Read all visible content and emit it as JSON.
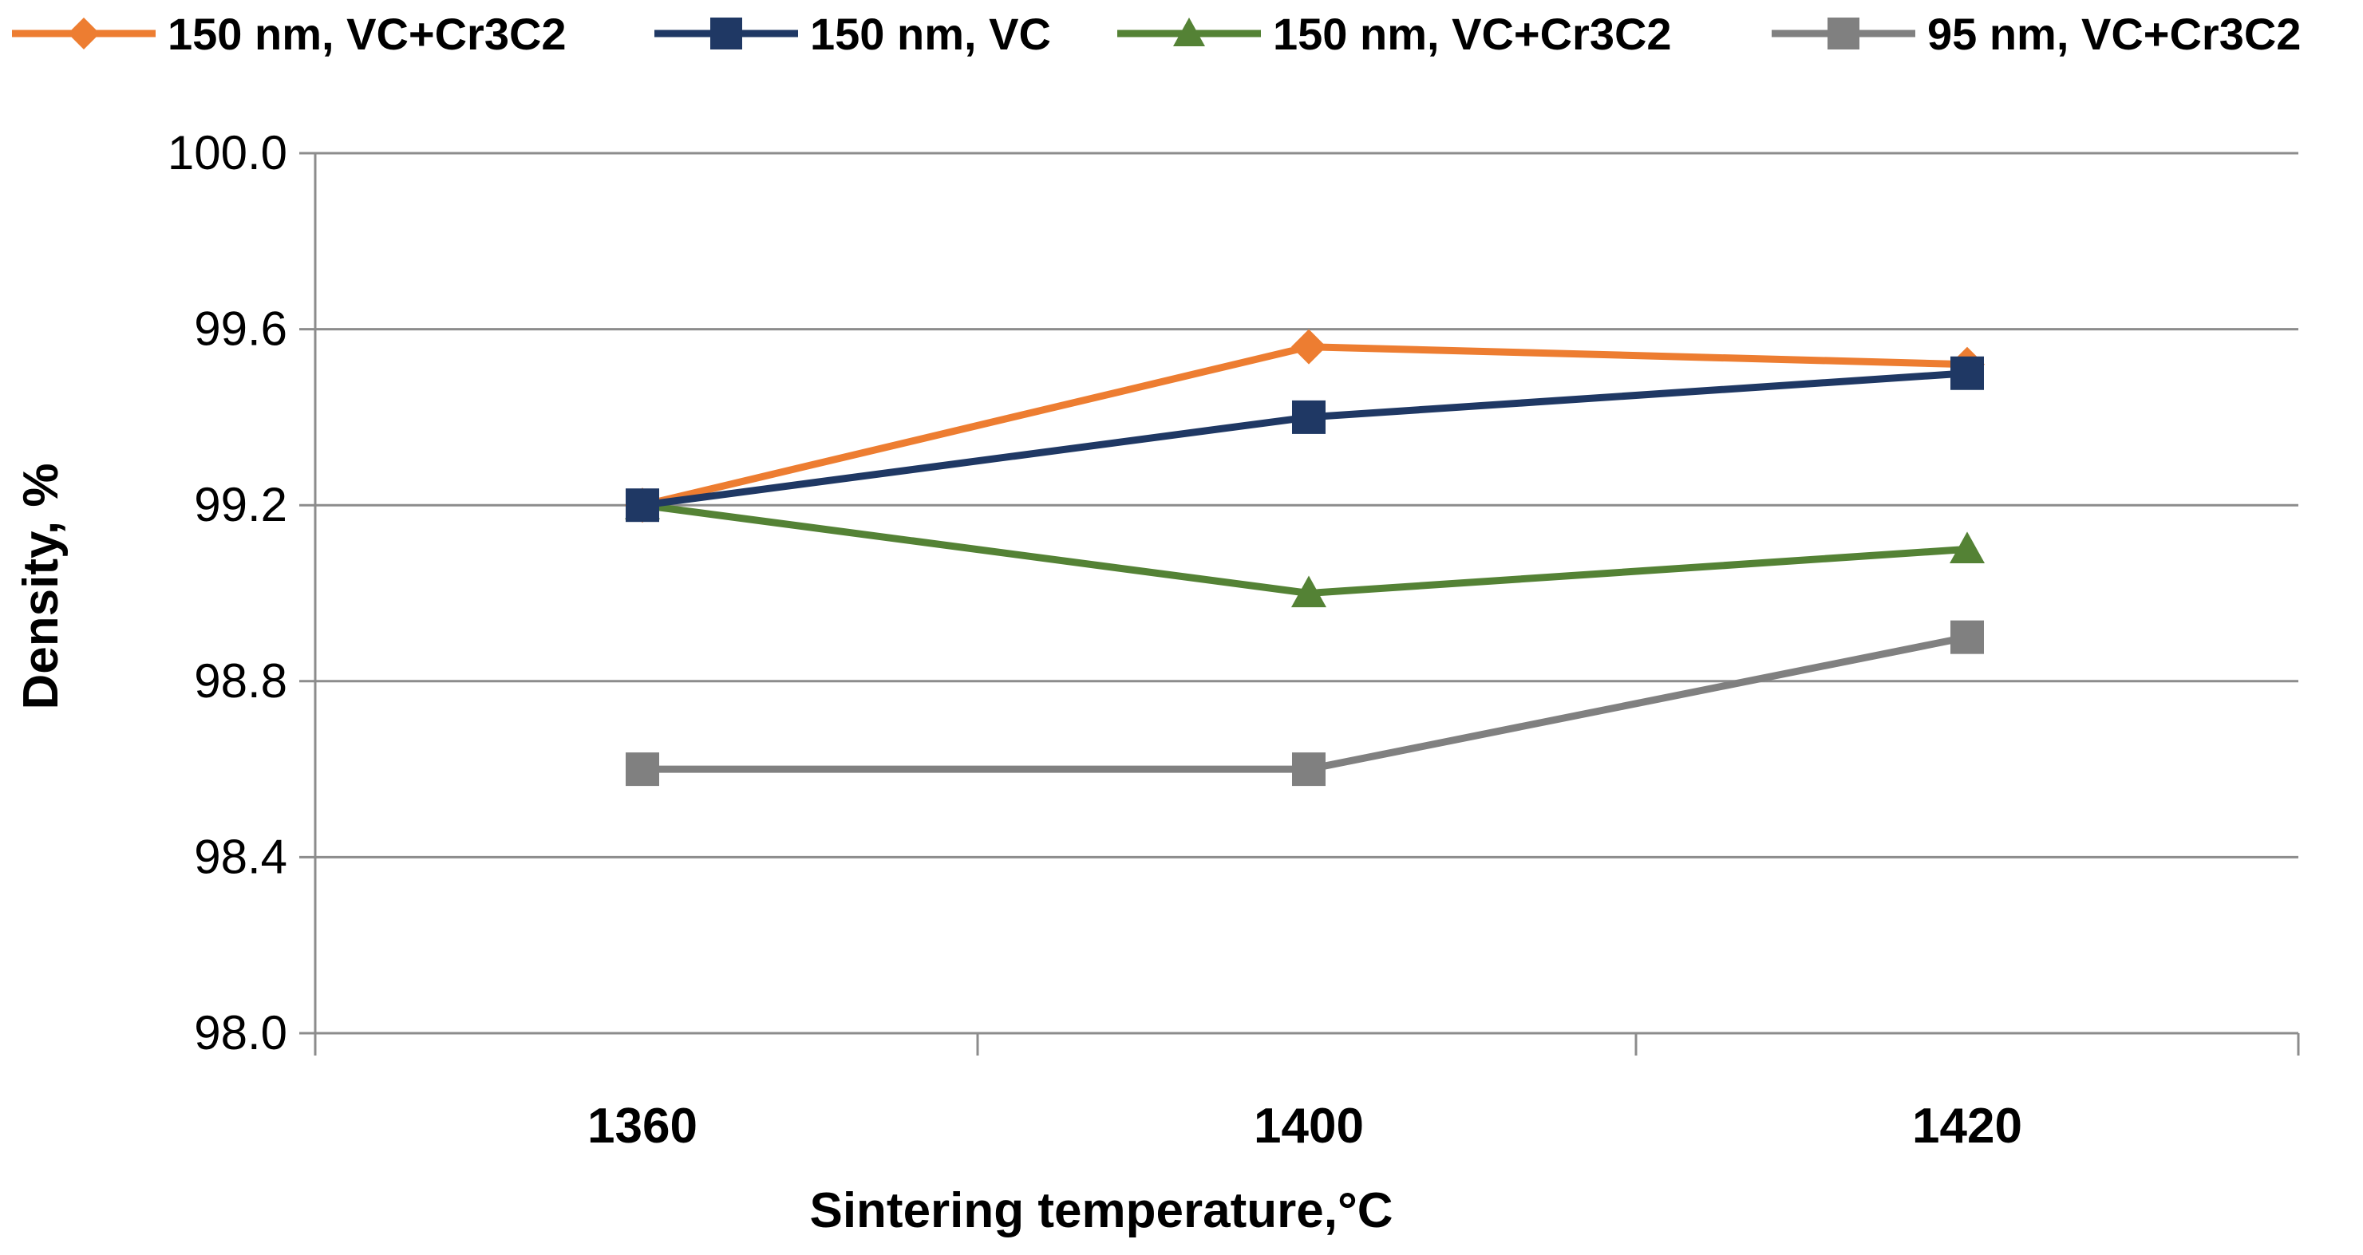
{
  "chart_data": {
    "type": "line",
    "title": "",
    "xlabel": "Sintering temperature,°C",
    "ylabel": "Density, %",
    "categories": [
      "1360",
      "1400",
      "1420"
    ],
    "ylim": [
      98.0,
      100.0
    ],
    "yticks": [
      "98.0",
      "98.4",
      "98.8",
      "99.2",
      "99.6",
      "100.0"
    ],
    "grid": true,
    "legend_position": "top",
    "series": [
      {
        "name": "150 nm, VC+Cr3C2",
        "values": [
          99.2,
          99.56,
          99.52
        ],
        "color": "#ED7D31",
        "marker": "diamond"
      },
      {
        "name": "150 nm, VC",
        "values": [
          99.2,
          99.4,
          99.5
        ],
        "color": "#1F3864",
        "marker": "square"
      },
      {
        "name": "150 nm, VC+Cr3C2",
        "values": [
          99.2,
          99.0,
          99.1
        ],
        "color": "#548235",
        "marker": "triangle"
      },
      {
        "name": "95 nm, VC+Cr3C2",
        "values": [
          98.6,
          98.6,
          98.9
        ],
        "color": "#808080",
        "marker": "square"
      }
    ]
  }
}
